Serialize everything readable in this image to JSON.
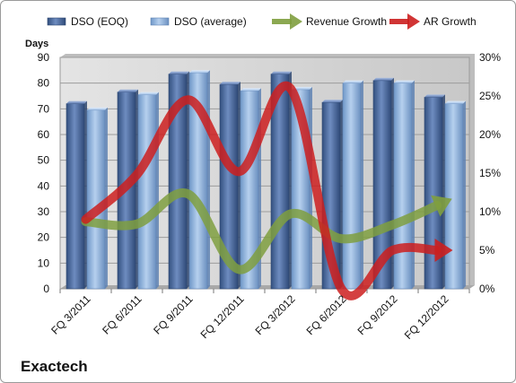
{
  "chart_data": {
    "type": "bar",
    "brand": "Exactech",
    "ylabel": "Days",
    "ylim": [
      0,
      90
    ],
    "y_ticks": [
      0,
      10,
      20,
      30,
      40,
      50,
      60,
      70,
      80,
      90
    ],
    "y2lim": [
      0,
      30
    ],
    "y2_ticks": [
      "0%",
      "5%",
      "10%",
      "15%",
      "20%",
      "25%",
      "30%"
    ],
    "categories": [
      "FQ 3/2011",
      "FQ 6/2011",
      "FQ 9/2011",
      "FQ 12/2011",
      "FQ 3/2012",
      "FQ 6/2012",
      "FQ 9/2012",
      "FQ 12/2012"
    ],
    "series": [
      {
        "name": "DSO (EOQ)",
        "kind": "bar",
        "axis": "left",
        "color": "#4f6fa8",
        "values": [
          72,
          76.5,
          83.5,
          79.5,
          83.5,
          72.5,
          81,
          74.5
        ]
      },
      {
        "name": "DSO (average)",
        "kind": "bar",
        "axis": "left",
        "color": "#8fb3df",
        "values": [
          69.5,
          75.5,
          84,
          77,
          77.5,
          80,
          80,
          72
        ]
      },
      {
        "name": "Revenue Growth",
        "kind": "arrow-line",
        "axis": "right",
        "color": "#7f9f3f",
        "unit": "%",
        "values": [
          8.7,
          8.4,
          12.3,
          2.5,
          9.7,
          6.5,
          8.3,
          11.2
        ]
      },
      {
        "name": "AR Growth",
        "kind": "arrow-line",
        "axis": "right",
        "color": "#cc1f1f",
        "unit": "%",
        "values": [
          9,
          14.8,
          24.5,
          15.2,
          26,
          0,
          5,
          5
        ]
      }
    ],
    "legend": "top",
    "grid": true
  }
}
